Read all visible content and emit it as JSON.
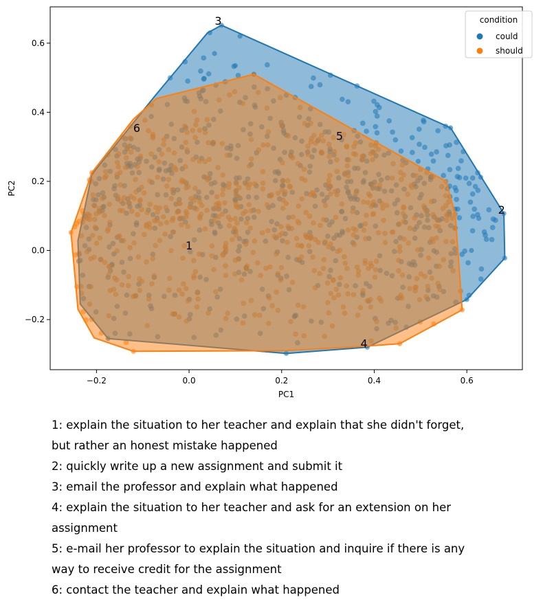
{
  "chart_data": {
    "type": "scatter",
    "xlabel": "PC1",
    "ylabel": "PC2",
    "xlim": [
      -0.3,
      0.72
    ],
    "ylim": [
      -0.345,
      0.705
    ],
    "xticks": [
      -0.2,
      0.0,
      0.2,
      0.4,
      0.6
    ],
    "xtick_labels": [
      "−0.2",
      "0.0",
      "0.2",
      "0.4",
      "0.6"
    ],
    "yticks": [
      -0.2,
      0.0,
      0.2,
      0.4,
      0.6
    ],
    "ytick_labels": [
      "−0.2",
      "0.0",
      "0.2",
      "0.4",
      "0.6"
    ],
    "grid": false,
    "legend": {
      "title": "condition",
      "placement": "top-right",
      "entries": [
        {
          "label": "could",
          "color": "#1f77b4"
        },
        {
          "label": "should",
          "color": "#ff7f0e"
        }
      ]
    },
    "series": [
      {
        "name": "could",
        "color": "#1f77b4",
        "hull": [
          [
            0.07,
            0.652
          ],
          [
            0.565,
            0.355
          ],
          [
            0.68,
            0.107
          ],
          [
            0.682,
            -0.022
          ],
          [
            0.6,
            -0.142
          ],
          [
            0.385,
            -0.28
          ],
          [
            0.21,
            -0.298
          ],
          [
            -0.175,
            -0.255
          ],
          [
            -0.235,
            -0.155
          ],
          [
            -0.24,
            0.028
          ],
          [
            -0.21,
            0.22
          ],
          [
            -0.075,
            0.445
          ],
          [
            0.04,
            0.63
          ]
        ],
        "points": [
          [
            0.07,
            0.652
          ],
          [
            0.045,
            0.63
          ],
          [
            0.11,
            0.62
          ],
          [
            0.055,
            0.57
          ],
          [
            0.1,
            0.535
          ],
          [
            0.14,
            0.51
          ],
          [
            0.33,
            0.32
          ],
          [
            0.495,
            0.258
          ],
          [
            0.565,
            0.355
          ],
          [
            0.63,
            0.212
          ],
          [
            0.575,
            0.12
          ],
          [
            0.68,
            0.107
          ],
          [
            0.61,
            0.0
          ],
          [
            0.682,
            -0.022
          ],
          [
            0.6,
            -0.142
          ],
          [
            0.385,
            -0.28
          ],
          [
            0.21,
            -0.298
          ],
          [
            -0.175,
            -0.255
          ]
        ],
        "n_points_estimate": 600
      },
      {
        "name": "should",
        "color": "#ff7f0e",
        "hull": [
          [
            0.14,
            0.51
          ],
          [
            0.555,
            0.2
          ],
          [
            0.575,
            0.105
          ],
          [
            0.59,
            -0.172
          ],
          [
            0.455,
            -0.27
          ],
          [
            0.37,
            -0.278
          ],
          [
            0.21,
            -0.29
          ],
          [
            -0.12,
            -0.292
          ],
          [
            -0.205,
            -0.253
          ],
          [
            -0.24,
            -0.17
          ],
          [
            -0.255,
            0.052
          ],
          [
            -0.21,
            0.225
          ],
          [
            -0.12,
            0.38
          ],
          [
            -0.07,
            0.44
          ]
        ],
        "points": [
          [
            0.14,
            0.51
          ],
          [
            0.555,
            0.2
          ],
          [
            0.575,
            0.105
          ],
          [
            0.59,
            -0.172
          ],
          [
            0.455,
            -0.27
          ],
          [
            -0.12,
            -0.292
          ],
          [
            -0.255,
            0.052
          ],
          [
            -0.21,
            0.225
          ]
        ],
        "n_points_estimate": 600
      }
    ],
    "annotations": [
      {
        "text": "1",
        "x": 0.0,
        "y": 0.015
      },
      {
        "text": "2",
        "x": 0.675,
        "y": 0.118
      },
      {
        "text": "3",
        "x": 0.063,
        "y": 0.665
      },
      {
        "text": "4",
        "x": 0.378,
        "y": -0.268
      },
      {
        "text": "5",
        "x": 0.325,
        "y": 0.332
      },
      {
        "text": "6",
        "x": -0.113,
        "y": 0.355
      }
    ]
  },
  "captions": [
    "1: explain the situation to her teacher and explain that she didn't forget,",
    "but rather an honest mistake happened",
    "2: quickly write up a new assignment and submit it",
    "3: email the professor and explain what happened",
    "4: explain the situation to her teacher and ask for an extension on her",
    "assignment",
    "5: e-mail her professor to explain the situation and inquire if there is any",
    "way to receive credit for the assignment",
    "6: contact the teacher and explain what happened"
  ]
}
